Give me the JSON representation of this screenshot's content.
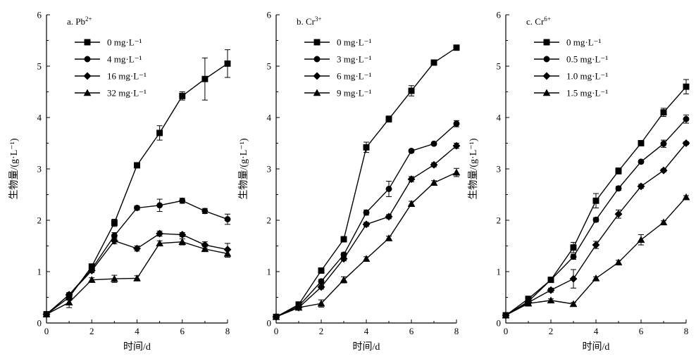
{
  "chart_data": [
    {
      "type": "line",
      "panel_label": "a. Pb",
      "panel_sup": "2+",
      "xlabel": "时间/d",
      "ylabel": "生物量/(g·L⁻¹)",
      "xlim": [
        0,
        8
      ],
      "ylim": [
        0,
        6
      ],
      "xticks": [
        0,
        2,
        4,
        6,
        8
      ],
      "yticks": [
        0,
        1,
        2,
        3,
        4,
        5,
        6
      ],
      "x": [
        0,
        1,
        2,
        3,
        4,
        5,
        6,
        7,
        8
      ],
      "series": [
        {
          "name": "0 mg·L⁻¹",
          "marker": "square",
          "values": [
            0.17,
            0.5,
            1.1,
            1.95,
            3.07,
            3.7,
            4.42,
            4.75,
            5.05
          ],
          "errors": [
            0.03,
            0.05,
            0.04,
            0.07,
            0.04,
            0.14,
            0.08,
            0.41,
            0.27
          ]
        },
        {
          "name": "4 mg·L⁻¹",
          "marker": "circle",
          "values": [
            0.17,
            0.55,
            1.05,
            1.7,
            2.24,
            2.29,
            2.38,
            2.18,
            2.02
          ],
          "errors": [
            0.02,
            0.04,
            0.04,
            0.06,
            0.04,
            0.12,
            0.05,
            0.05,
            0.1
          ]
        },
        {
          "name": "16 mg·L⁻¹",
          "marker": "diamond",
          "values": [
            0.17,
            0.55,
            1.02,
            1.6,
            1.45,
            1.74,
            1.72,
            1.52,
            1.43
          ],
          "errors": [
            0.02,
            0.04,
            0.04,
            0.06,
            0.05,
            0.05,
            0.04,
            0.06,
            0.12
          ]
        },
        {
          "name": "32 mg·L⁻¹",
          "marker": "triangle",
          "values": [
            0.17,
            0.4,
            0.84,
            0.86,
            0.87,
            1.55,
            1.58,
            1.44,
            1.35
          ],
          "errors": [
            0.02,
            0.1,
            0.04,
            0.07,
            0.05,
            0.05,
            0.06,
            0.05,
            0.07
          ]
        }
      ]
    },
    {
      "type": "line",
      "panel_label": "b. Cr",
      "panel_sup": "3+",
      "xlabel": "时间/d",
      "ylabel": "生物量/(g·L⁻¹)",
      "xlim": [
        0,
        8
      ],
      "ylim": [
        0,
        6
      ],
      "xticks": [
        0,
        2,
        4,
        6,
        8
      ],
      "yticks": [
        0,
        1,
        2,
        3,
        4,
        5,
        6
      ],
      "x": [
        0,
        1,
        2,
        3,
        4,
        5,
        6,
        7,
        8
      ],
      "series": [
        {
          "name": "0 mg·L⁻¹",
          "marker": "square",
          "values": [
            0.12,
            0.36,
            1.02,
            1.63,
            3.42,
            3.97,
            4.52,
            5.07,
            5.36
          ],
          "errors": [
            0.02,
            0.04,
            0.04,
            0.04,
            0.1,
            0.06,
            0.1,
            0.05,
            0.03
          ]
        },
        {
          "name": "3 mg·L⁻¹",
          "marker": "circle",
          "values": [
            0.12,
            0.33,
            0.81,
            1.33,
            2.15,
            2.61,
            3.35,
            3.49,
            3.88
          ],
          "errors": [
            0.02,
            0.03,
            0.04,
            0.04,
            0.05,
            0.15,
            0.03,
            0.03,
            0.06
          ]
        },
        {
          "name": "6 mg·L⁻¹",
          "marker": "diamond",
          "values": [
            0.12,
            0.3,
            0.7,
            1.25,
            1.92,
            2.07,
            2.8,
            3.08,
            3.45
          ],
          "errors": [
            0.02,
            0.03,
            0.04,
            0.04,
            0.04,
            0.04,
            0.05,
            0.04,
            0.05
          ]
        },
        {
          "name": "9 mg·L⁻¹",
          "marker": "triangle",
          "values": [
            0.12,
            0.3,
            0.38,
            0.84,
            1.25,
            1.65,
            2.32,
            2.73,
            2.93
          ],
          "errors": [
            0.02,
            0.03,
            0.07,
            0.06,
            0.04,
            0.04,
            0.05,
            0.04,
            0.08
          ]
        }
      ]
    },
    {
      "type": "line",
      "panel_label": "c. Cr",
      "panel_sup": "6+",
      "xlabel": "时间/d",
      "ylabel": "生物量/(g·L⁻¹)",
      "xlim": [
        0,
        8
      ],
      "ylim": [
        0,
        6
      ],
      "xticks": [
        0,
        2,
        4,
        6,
        8
      ],
      "yticks": [
        0,
        1,
        2,
        3,
        4,
        5,
        6
      ],
      "x": [
        0,
        1,
        2,
        3,
        4,
        5,
        6,
        7,
        8
      ],
      "series": [
        {
          "name": "0 mg·L⁻¹",
          "marker": "square",
          "values": [
            0.15,
            0.47,
            0.84,
            1.47,
            2.38,
            2.96,
            3.5,
            4.1,
            4.6
          ],
          "errors": [
            0.02,
            0.04,
            0.05,
            0.1,
            0.14,
            0.06,
            0.04,
            0.08,
            0.14
          ]
        },
        {
          "name": "0.5 mg·L⁻¹",
          "marker": "circle",
          "values": [
            0.15,
            0.42,
            0.84,
            1.29,
            2.01,
            2.62,
            3.14,
            3.49,
            3.97
          ],
          "errors": [
            0.02,
            0.04,
            0.04,
            0.05,
            0.04,
            0.04,
            0.03,
            0.07,
            0.08
          ]
        },
        {
          "name": "1.0 mg·L⁻¹",
          "marker": "diamond",
          "values": [
            0.15,
            0.4,
            0.64,
            0.86,
            1.52,
            2.12,
            2.66,
            2.97,
            3.5
          ],
          "errors": [
            0.02,
            0.03,
            0.04,
            0.18,
            0.07,
            0.08,
            0.04,
            0.03,
            0.03
          ]
        },
        {
          "name": "1.5 mg·L⁻¹",
          "marker": "triangle",
          "values": [
            0.15,
            0.38,
            0.44,
            0.37,
            0.87,
            1.18,
            1.62,
            1.96,
            2.45
          ],
          "errors": [
            0.02,
            0.03,
            0.03,
            0.03,
            0.03,
            0.04,
            0.1,
            0.03,
            0.03
          ]
        }
      ]
    }
  ]
}
